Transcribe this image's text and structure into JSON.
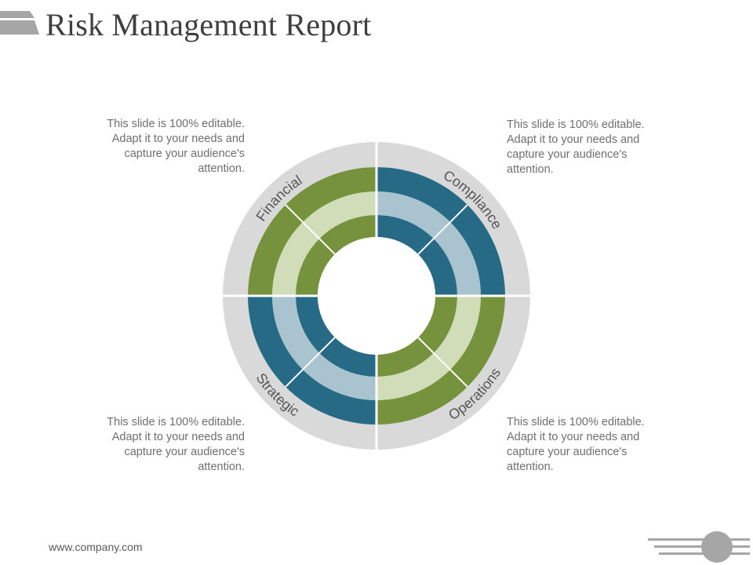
{
  "header": {
    "title": "Risk Management Report"
  },
  "diagram": {
    "colors": {
      "green": "#76923c",
      "green_light": "#d1dcb8",
      "blue": "#276a85",
      "blue_light": "#a9c4cf",
      "outer_ring": "#d9d9d9"
    },
    "segments": [
      {
        "key": "financial",
        "label": "Financial",
        "scheme": "green",
        "quadrant": "top-left"
      },
      {
        "key": "compliance",
        "label": "Compliance",
        "scheme": "blue",
        "quadrant": "top-right"
      },
      {
        "key": "operations",
        "label": "Operations",
        "scheme": "green",
        "quadrant": "bottom-right"
      },
      {
        "key": "strategic",
        "label": "Strategic",
        "scheme": "blue",
        "quadrant": "bottom-left"
      }
    ]
  },
  "notes": {
    "top_left": "This slide is 100% editable. Adapt it to your needs and capture your audience's attention.",
    "top_right": "This slide is 100% editable. Adapt it to your needs and capture your audience's attention.",
    "bottom_left": "This slide is 100% editable. Adapt it to your needs and capture your audience's attention.",
    "bottom_right": "This slide is 100% editable. Adapt it to your needs and capture your audience's attention."
  },
  "footer": {
    "url": "www.company.com"
  }
}
